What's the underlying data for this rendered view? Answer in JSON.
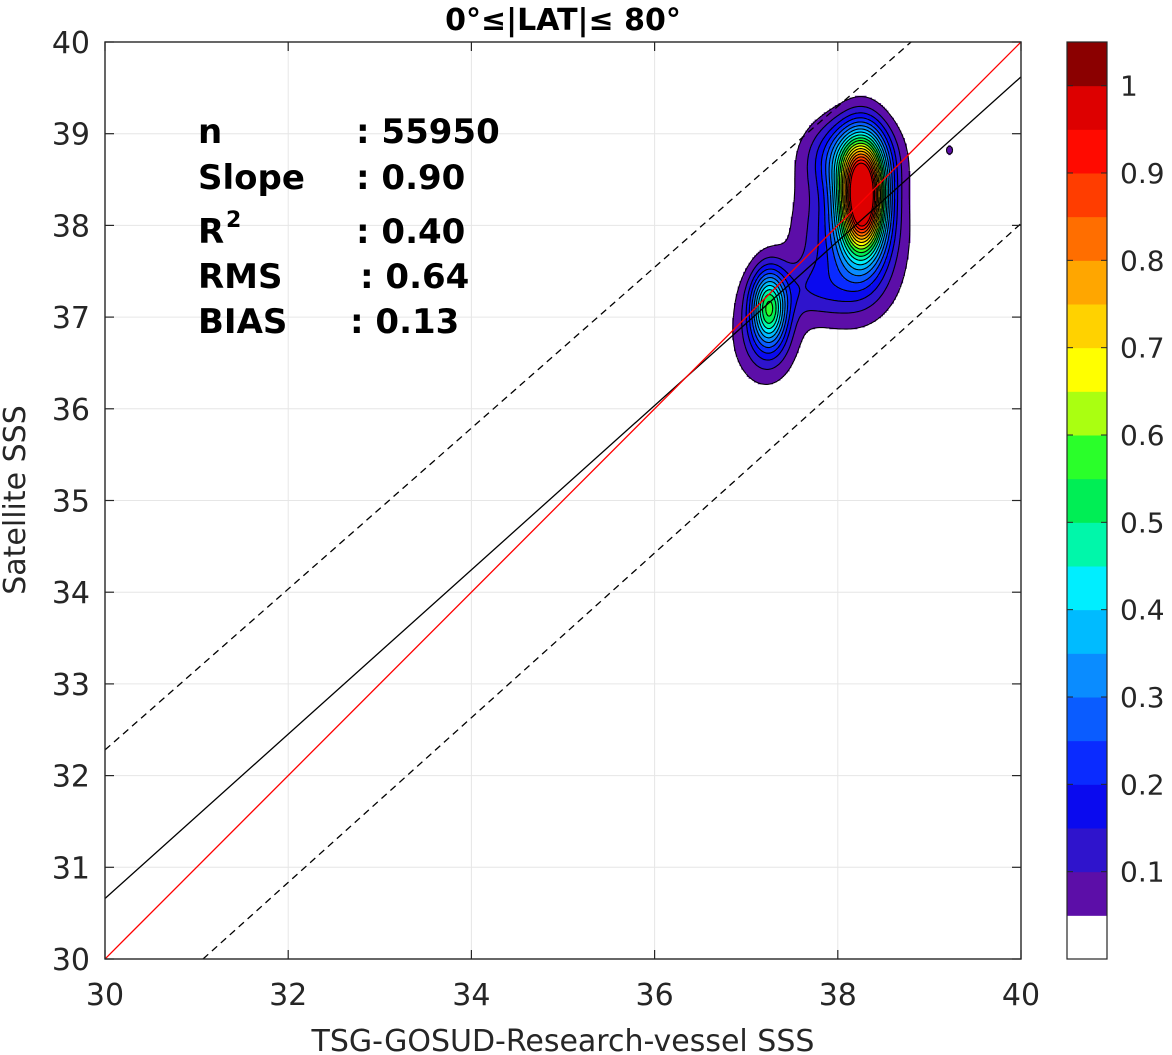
{
  "chart_data": {
    "type": "contour",
    "title": "0°≤|LAT|≤ 80°",
    "xlabel": "TSG-GOSUD-Research-vessel SSS",
    "ylabel": "Satellite SSS",
    "xlim": [
      30,
      40
    ],
    "ylim": [
      30,
      40
    ],
    "xticks": [
      "30",
      "32",
      "34",
      "36",
      "38",
      "40"
    ],
    "yticks": [
      "30",
      "31",
      "32",
      "33",
      "34",
      "35",
      "36",
      "37",
      "38",
      "39",
      "40"
    ],
    "grid": true,
    "stats": [
      {
        "label": "n",
        "value": ": 55950"
      },
      {
        "label": "Slope",
        "value": ": 0.90"
      },
      {
        "label": "R",
        "sup": "2",
        "value": ": 0.40"
      },
      {
        "label": "RMS",
        "value": ": 0.64"
      },
      {
        "label": "BIAS",
        "value": ": 0.13"
      }
    ],
    "lines": [
      {
        "name": "one-to-one",
        "color": "#ff0000",
        "dash": false,
        "x": [
          30,
          40
        ],
        "y": [
          30,
          40
        ]
      },
      {
        "name": "regression",
        "color": "#000000",
        "dash": false,
        "x": [
          30,
          40
        ],
        "y": [
          30.66,
          39.62
        ]
      },
      {
        "name": "upper-bound",
        "color": "#000000",
        "dash": true,
        "x": [
          30,
          38.8
        ],
        "y": [
          32.28,
          40
        ]
      },
      {
        "name": "lower-bound",
        "color": "#000000",
        "dash": true,
        "x": [
          31.07,
          40
        ],
        "y": [
          30,
          38.02
        ]
      }
    ],
    "density_levels": [
      0.05,
      0.1,
      0.15,
      0.2,
      0.25,
      0.3,
      0.35,
      0.4,
      0.45,
      0.5,
      0.55,
      0.6,
      0.65,
      0.7,
      0.75,
      0.8,
      0.85,
      0.9,
      0.95
    ],
    "density_peaks": [
      {
        "x": 38.27,
        "y": 38.3,
        "sx": 0.17,
        "sy": 0.42,
        "amp": 1.0
      },
      {
        "x": 38.12,
        "y": 37.85,
        "sx": 0.38,
        "sy": 0.55,
        "amp": 0.2
      },
      {
        "x": 38.15,
        "y": 38.75,
        "sx": 0.3,
        "sy": 0.28,
        "amp": 0.25
      },
      {
        "x": 37.25,
        "y": 37.1,
        "sx": 0.13,
        "sy": 0.28,
        "amp": 0.45
      },
      {
        "x": 37.2,
        "y": 36.8,
        "sx": 0.25,
        "sy": 0.38,
        "amp": 0.12
      },
      {
        "x": 37.7,
        "y": 37.3,
        "sx": 0.4,
        "sy": 0.22,
        "amp": 0.08
      },
      {
        "x": 39.22,
        "y": 38.82,
        "sx": 0.03,
        "sy": 0.04,
        "amp": 0.09
      }
    ],
    "colorbar": {
      "ticks": [
        "0.1",
        "0.2",
        "0.3",
        "0.4",
        "0.5",
        "0.6",
        "0.7",
        "0.8",
        "0.9",
        "1"
      ],
      "colors": [
        "#ffffff",
        "#5c0ea8",
        "#2f14cc",
        "#0a0aef",
        "#0a2bff",
        "#0a5cff",
        "#0a8cff",
        "#00bbff",
        "#00eeff",
        "#00f7aa",
        "#00ee55",
        "#2aff2a",
        "#aaff11",
        "#ffff00",
        "#ffd200",
        "#ffa600",
        "#ff6e00",
        "#ff3d00",
        "#ff0a00",
        "#dd0000",
        "#8b0000"
      ]
    }
  }
}
